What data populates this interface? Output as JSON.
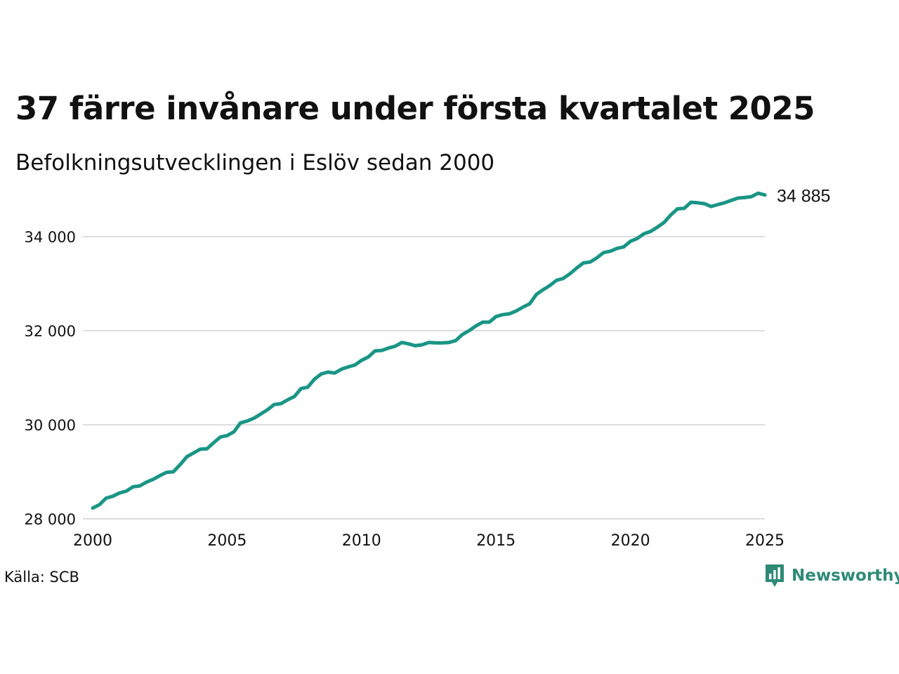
{
  "header": {
    "title": "37 färre invånare under första kvartalet 2025",
    "subtitle": "Befolkningsutvecklingen i Eslöv sedan 2000"
  },
  "footer": {
    "source": "Källa: SCB",
    "brand": "Newsworthy"
  },
  "colors": {
    "line": "#1a9585",
    "grid": "#dddddd",
    "brand": "#2e8a76"
  },
  "icons": {
    "brand_logo": "newsworthy-chat-chart-icon"
  },
  "chart_data": {
    "type": "line",
    "title": "37 färre invånare under första kvartalet 2025",
    "subtitle": "Befolkningsutvecklingen i Eslöv sedan 2000",
    "xlabel": "",
    "ylabel": "",
    "xlim": [
      2000,
      2025
    ],
    "ylim": [
      28000,
      35000
    ],
    "x_ticks": [
      2000,
      2005,
      2010,
      2015,
      2020,
      2025
    ],
    "x_tick_labels": [
      "2000",
      "2005",
      "2010",
      "2015",
      "2020",
      "2025"
    ],
    "y_ticks": [
      28000,
      30000,
      32000,
      34000
    ],
    "y_tick_labels": [
      "28 000",
      "30 000",
      "32 000",
      "34 000"
    ],
    "grid": "horizontal",
    "legend": "none",
    "end_label": "34 885",
    "series": [
      {
        "x": [
          "2000Q1",
          "2000Q2",
          "2000Q3",
          "2000Q4",
          "2001Q1",
          "2001Q2",
          "2001Q3",
          "2001Q4",
          "2002Q1",
          "2002Q2",
          "2002Q3",
          "2002Q4",
          "2003Q1",
          "2003Q2",
          "2003Q3",
          "2003Q4",
          "2004Q1",
          "2004Q2",
          "2004Q3",
          "2004Q4",
          "2005Q1",
          "2005Q2",
          "2005Q3",
          "2005Q4",
          "2006Q1",
          "2006Q2",
          "2006Q3",
          "2006Q4",
          "2007Q1",
          "2007Q2",
          "2007Q3",
          "2007Q4",
          "2008Q1",
          "2008Q2",
          "2008Q3",
          "2008Q4",
          "2009Q1",
          "2009Q2",
          "2009Q3",
          "2009Q4",
          "2010Q1",
          "2010Q2",
          "2010Q3",
          "2010Q4",
          "2011Q1",
          "2011Q2",
          "2011Q3",
          "2011Q4",
          "2012Q1",
          "2012Q2",
          "2012Q3",
          "2012Q4",
          "2013Q1",
          "2013Q2",
          "2013Q3",
          "2013Q4",
          "2014Q1",
          "2014Q2",
          "2014Q3",
          "2014Q4",
          "2015Q1",
          "2015Q2",
          "2015Q3",
          "2015Q4",
          "2016Q1",
          "2016Q2",
          "2016Q3",
          "2016Q4",
          "2017Q1",
          "2017Q2",
          "2017Q3",
          "2017Q4",
          "2018Q1",
          "2018Q2",
          "2018Q3",
          "2018Q4",
          "2019Q1",
          "2019Q2",
          "2019Q3",
          "2019Q4",
          "2020Q1",
          "2020Q2",
          "2020Q3",
          "2020Q4",
          "2021Q1",
          "2021Q2",
          "2021Q3",
          "2021Q4",
          "2022Q1",
          "2022Q2",
          "2022Q3",
          "2022Q4",
          "2023Q1",
          "2023Q2",
          "2023Q3",
          "2023Q4",
          "2024Q1",
          "2024Q2",
          "2024Q3",
          "2024Q4",
          "2025Q1"
        ],
        "values": [
          28230,
          28300,
          28440,
          28480,
          28550,
          28590,
          28680,
          28700,
          28780,
          28840,
          28920,
          28990,
          29000,
          29150,
          29320,
          29400,
          29480,
          29490,
          29620,
          29740,
          29770,
          29850,
          30040,
          30080,
          30140,
          30230,
          30320,
          30430,
          30450,
          30530,
          30600,
          30770,
          30800,
          30970,
          31080,
          31120,
          31100,
          31180,
          31230,
          31270,
          31370,
          31440,
          31570,
          31580,
          31630,
          31670,
          31750,
          31720,
          31680,
          31700,
          31750,
          31740,
          31740,
          31750,
          31790,
          31920,
          32000,
          32100,
          32180,
          32180,
          32300,
          32340,
          32360,
          32420,
          32500,
          32570,
          32770,
          32870,
          32960,
          33070,
          33110,
          33210,
          33330,
          33440,
          33460,
          33550,
          33660,
          33690,
          33750,
          33780,
          33900,
          33960,
          34060,
          34110,
          34200,
          34300,
          34460,
          34590,
          34600,
          34730,
          34720,
          34700,
          34640,
          34680,
          34720,
          34770,
          34820,
          34830,
          34850,
          34922,
          34885
        ]
      }
    ]
  }
}
